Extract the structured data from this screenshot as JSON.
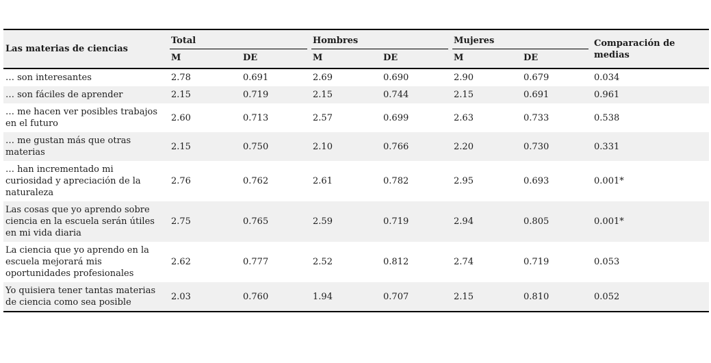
{
  "page": {
    "background": "#ffffff"
  },
  "colors": {
    "header_shade": "#f0f0f0",
    "row_shade": "#f0f0f0",
    "border": "#000000",
    "text": "#1c1c1c"
  },
  "table": {
    "item_header": "Las materias de ciencias",
    "groups": [
      "Total",
      "Hombres",
      "Mujeres"
    ],
    "sub_m": "M",
    "sub_de": "DE",
    "comparison_header": "Comparación de medias",
    "rows": [
      {
        "item": "… son interesantes",
        "values": [
          "2.78",
          "0.691",
          "2.69",
          "0.690",
          "2.90",
          "0.679",
          "0.034"
        ]
      },
      {
        "item": "… son fáciles de aprender",
        "values": [
          "2.15",
          "0.719",
          "2.15",
          "0.744",
          "2.15",
          "0.691",
          "0.961"
        ]
      },
      {
        "item": "… me hacen ver posibles trabajos en el futuro",
        "values": [
          "2.60",
          "0.713",
          "2.57",
          "0.699",
          "2.63",
          "0.733",
          "0.538"
        ]
      },
      {
        "item": "… me gustan más que otras materias",
        "values": [
          "2.15",
          "0.750",
          "2.10",
          "0.766",
          "2.20",
          "0.730",
          "0.331"
        ]
      },
      {
        "item": "… han incrementado mi curiosidad y apreciación de la naturaleza",
        "values": [
          "2.76",
          "0.762",
          "2.61",
          "0.782",
          "2.95",
          "0.693",
          "0.001*"
        ]
      },
      {
        "item": "Las cosas que yo aprendo sobre ciencia en la escuela serán útiles en mi vida diaria",
        "values": [
          "2.75",
          "0.765",
          "2.59",
          "0.719",
          "2.94",
          "0.805",
          "0.001*"
        ]
      },
      {
        "item": "La ciencia que yo aprendo en la escuela mejorará mis oportunidades profesionales",
        "values": [
          "2.62",
          "0.777",
          "2.52",
          "0.812",
          "2.74",
          "0.719",
          "0.053"
        ]
      },
      {
        "item": "Yo quisiera tener tantas materias de ciencia como sea posible",
        "values": [
          "2.03",
          "0.760",
          "1.94",
          "0.707",
          "2.15",
          "0.810",
          "0.052"
        ]
      }
    ]
  }
}
